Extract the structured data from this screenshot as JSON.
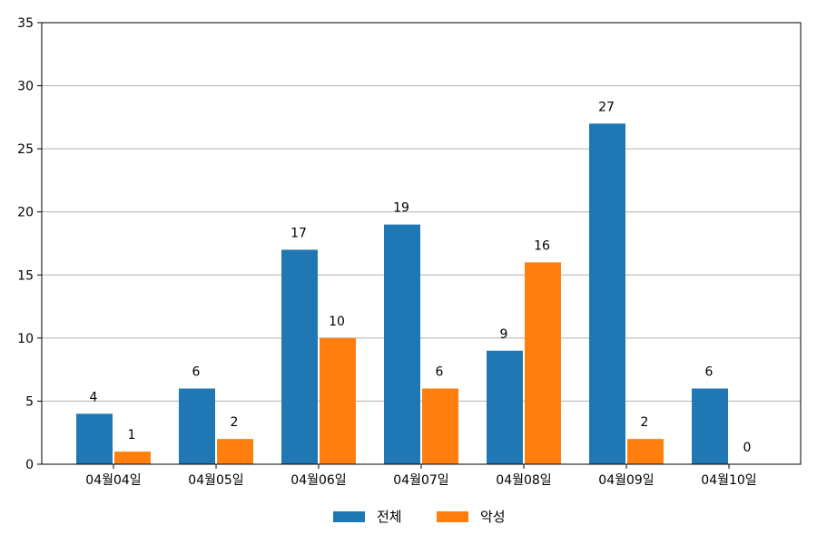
{
  "chart_data": {
    "type": "bar",
    "categories": [
      "04월04일",
      "04월05일",
      "04월06일",
      "04월07일",
      "04월08일",
      "04월09일",
      "04월10일"
    ],
    "series": [
      {
        "name": "전체",
        "values": [
          4,
          6,
          17,
          19,
          9,
          27,
          6
        ],
        "color": "#1f77b4"
      },
      {
        "name": "악성",
        "values": [
          1,
          2,
          10,
          6,
          16,
          2,
          0
        ],
        "color": "#ff7f0e"
      }
    ],
    "ylim": [
      0,
      35
    ],
    "yticks": [
      0,
      5,
      10,
      15,
      20,
      25,
      30,
      35
    ],
    "grid": "horizontal",
    "legend_position": "bottom-center",
    "data_labels": true
  }
}
